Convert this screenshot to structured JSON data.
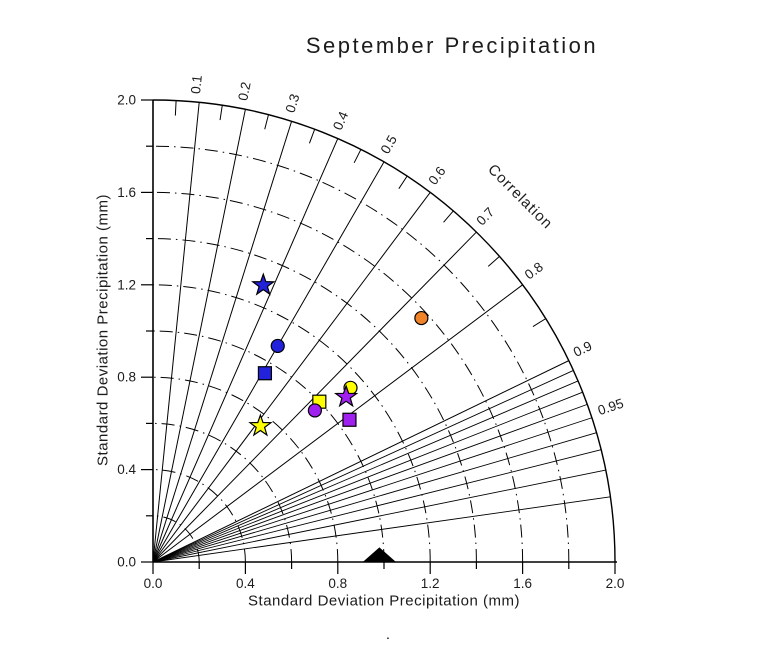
{
  "chart_data": {
    "type": "scatter",
    "variant": "taylor-diagram",
    "title": "September Precipitation",
    "xlabel": "Standard Deviation Precipitation (mm)",
    "ylabel": "Standard Deviation Precipitation (mm)",
    "xlim": [
      0.0,
      2.0
    ],
    "ylim": [
      0.0,
      2.0
    ],
    "grid": true,
    "legend": "none",
    "axis_major_ticks": [
      0.0,
      0.4,
      0.8,
      1.2,
      1.6,
      2.0
    ],
    "axis_minor_ticks": [
      0.2,
      0.6,
      1.0,
      1.4,
      1.8
    ],
    "correlation_axis": {
      "label": "Correlation",
      "major_lines": [
        0.1,
        0.2,
        0.3,
        0.4,
        0.5,
        0.6,
        0.7,
        0.8,
        0.9
      ],
      "fine_lines": [
        0.91,
        0.92,
        0.93,
        0.94,
        0.95,
        0.96,
        0.97,
        0.98,
        0.99
      ],
      "labeled_values": [
        "0.1",
        "0.2",
        "0.3",
        "0.4",
        "0.5",
        "0.6",
        "0.7",
        "0.8",
        "0.9",
        "0.95"
      ],
      "minor_tick_values": [
        0.05,
        0.15,
        0.25,
        0.35,
        0.45,
        0.55,
        0.65,
        0.75,
        0.85
      ]
    },
    "stddev_arcs": [
      0.2,
      0.4,
      0.6,
      0.8,
      1.0,
      1.2,
      1.4,
      1.6,
      1.8
    ],
    "outer_arc": 2.0,
    "reference_marker": {
      "shape": "triangle",
      "color": "black",
      "stddev": 0.98,
      "correlation": 1.0
    },
    "points": [
      {
        "shape": "star",
        "color": "blue",
        "stddev": 1.29,
        "correlation": 0.37
      },
      {
        "shape": "circle",
        "color": "blue",
        "stddev": 1.08,
        "correlation": 0.5
      },
      {
        "shape": "square",
        "color": "blue",
        "stddev": 0.95,
        "correlation": 0.51
      },
      {
        "shape": "circle",
        "color": "orange",
        "stddev": 1.57,
        "correlation": 0.74
      },
      {
        "shape": "circle",
        "color": "yellow",
        "stddev": 1.14,
        "correlation": 0.75
      },
      {
        "shape": "star",
        "color": "purple",
        "stddev": 1.1,
        "correlation": 0.76
      },
      {
        "shape": "square",
        "color": "yellow",
        "stddev": 1.0,
        "correlation": 0.72
      },
      {
        "shape": "circle",
        "color": "purple",
        "stddev": 0.96,
        "correlation": 0.73
      },
      {
        "shape": "square",
        "color": "purple",
        "stddev": 1.05,
        "correlation": 0.81
      },
      {
        "shape": "star",
        "color": "yellow",
        "stddev": 0.75,
        "correlation": 0.62
      }
    ],
    "palette": {
      "blue": "#2222DD",
      "purple": "#A020F0",
      "yellow": "#FFFF00",
      "orange": "#F08228",
      "black": "#000000"
    },
    "footnote_dot": "."
  }
}
